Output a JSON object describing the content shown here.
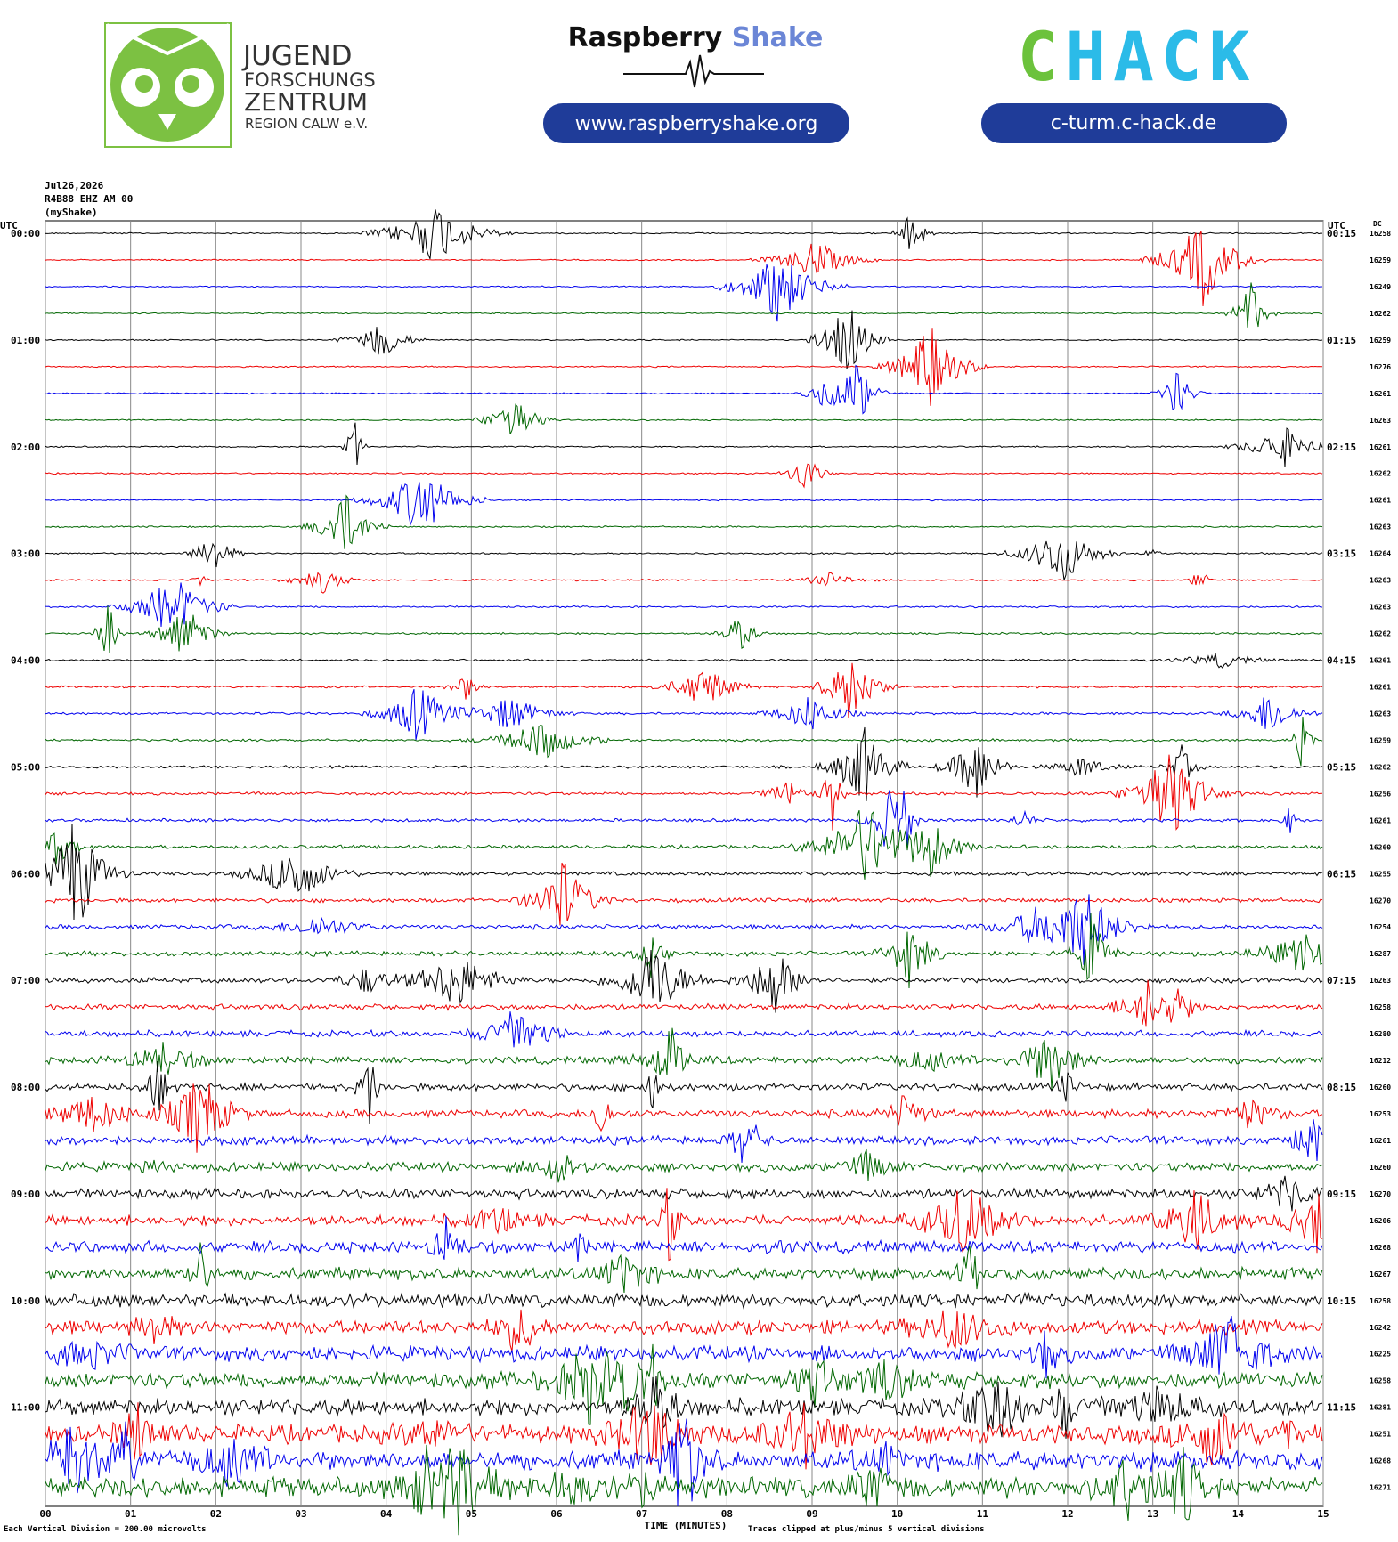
{
  "header": {
    "jfz": [
      "JUGEND",
      "FORSCHUNGS",
      "ZENTRUM",
      "REGION CALW e.V."
    ],
    "rs_title": [
      "Raspberry",
      "Shake"
    ],
    "rs_url": "www.raspberryshake.org",
    "chack": [
      "C",
      "HACK"
    ],
    "chack_url": "c-turm.c-hack.de"
  },
  "plot": {
    "date": "Jul26,2026",
    "station": "R4B88 EHZ AM 00",
    "source": "(myShake)",
    "left_unit": "UTC",
    "right_unit": "UTC",
    "dc_label": "DC",
    "left_times": [
      "00:00",
      "01:00",
      "02:00",
      "03:00",
      "04:00",
      "05:00",
      "06:00",
      "07:00",
      "08:00",
      "09:00",
      "10:00",
      "11:00"
    ],
    "right_times": [
      "00:15",
      "01:15",
      "02:15",
      "03:15",
      "04:15",
      "05:15",
      "06:15",
      "07:15",
      "08:15",
      "09:15",
      "10:15",
      "11:15"
    ],
    "dc": [
      16258,
      16259,
      16249,
      16262,
      16259,
      16276,
      16261,
      16263,
      16261,
      16262,
      16261,
      16263,
      16264,
      16263,
      16263,
      16262,
      16261,
      16261,
      16263,
      16259,
      16262,
      16256,
      16261,
      16260,
      16255,
      16270,
      16254,
      16287,
      16263,
      16258,
      16280,
      16212,
      16260,
      16253,
      16261,
      16260,
      16270,
      16206,
      16268,
      16267,
      16258,
      16242,
      16225,
      16258,
      16281,
      16251,
      16268,
      16271
    ],
    "x_ticks": [
      "00",
      "01",
      "02",
      "03",
      "04",
      "05",
      "06",
      "07",
      "08",
      "09",
      "10",
      "11",
      "12",
      "13",
      "14",
      "15"
    ],
    "x_label": "TIME (MINUTES)",
    "scale_note": "Each Vertical Division = 200.00 microvolts",
    "clip_note": "Traces clipped at plus/minus 5 vertical divisions"
  }
}
